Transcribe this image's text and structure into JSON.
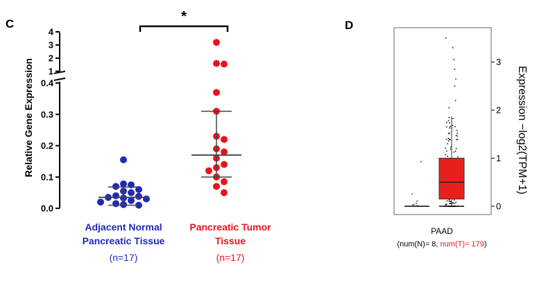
{
  "panel_c": {
    "label": "C",
    "significance": "*",
    "colors": {
      "normal": "#1f2ab8",
      "tumor": "#e8141c"
    }
  },
  "panel_d": {
    "label": "D",
    "colors": {
      "box": "#e8201c",
      "points": "#111111"
    }
  },
  "chart_data": [
    {
      "type": "scatter",
      "panel": "C",
      "title": "",
      "ylabel": "Relative Gene Expression",
      "xlabel": "",
      "y_axis_broken": true,
      "ylim_lower": [
        0,
        0.4
      ],
      "ylim_upper": [
        1,
        4
      ],
      "yticks_lower": [
        "0.0",
        "0.1",
        "0.2",
        "0.3",
        "0.4"
      ],
      "yticks_upper": [
        "1",
        "2",
        "3",
        "4"
      ],
      "grid": false,
      "groups": [
        {
          "label_line1": "Adjacent Normal",
          "label_line2": "Pancreatic Tissue",
          "n_label": "(n=17)",
          "color": "#1f2ab8",
          "values": [
            0.155,
            0.078,
            0.075,
            0.07,
            0.06,
            0.055,
            0.05,
            0.04,
            0.038,
            0.035,
            0.033,
            0.03,
            0.025,
            0.02,
            0.015,
            0.012,
            0.01
          ],
          "mean": 0.035,
          "sd_upper": 0.068,
          "sd_lower": 0.01
        },
        {
          "label_line1": "Pancreatic Tumor",
          "label_line2": "Tissue",
          "n_label": "(n=17)",
          "color": "#e8141c",
          "values": [
            3.2,
            1.6,
            1.55,
            0.37,
            0.31,
            0.23,
            0.22,
            0.19,
            0.18,
            0.16,
            0.14,
            0.13,
            0.12,
            0.1,
            0.085,
            0.07,
            0.05
          ],
          "mean": 0.17,
          "sd_upper": 0.31,
          "sd_lower": 0.1
        }
      ],
      "annotation": {
        "text": "*",
        "between": [
          "Adjacent Normal Pancreatic Tissue",
          "Pancreatic Tumor Tissue"
        ]
      }
    },
    {
      "type": "box",
      "panel": "D",
      "ylabel": "Expression −log2(TPM+1)",
      "ylim": [
        0,
        3.6
      ],
      "yticks": [
        "0",
        "1",
        "2",
        "3"
      ],
      "y_axis_side": "right",
      "grid": false,
      "category": "PAAD",
      "counts": {
        "prefix": "(num(N)= 8, ",
        "tumor": "num(T)= 179",
        "suffix": ")"
      },
      "series": [
        {
          "name": "N",
          "color": "#111111",
          "median": 0.0,
          "q1": 0.0,
          "q3": 0.0,
          "points": [
            0.0,
            0.0,
            0.02,
            0.03,
            0.05,
            0.1,
            0.25,
            0.92
          ]
        },
        {
          "name": "T",
          "color": "#e8201c",
          "median": 0.5,
          "q1": 0.15,
          "q3": 1.0,
          "whisker_low": 0.0,
          "whisker_high": 1.87,
          "outliers": [
            2.05,
            2.2,
            2.5,
            2.65,
            2.85,
            3.05,
            3.3,
            3.5
          ]
        }
      ]
    }
  ]
}
